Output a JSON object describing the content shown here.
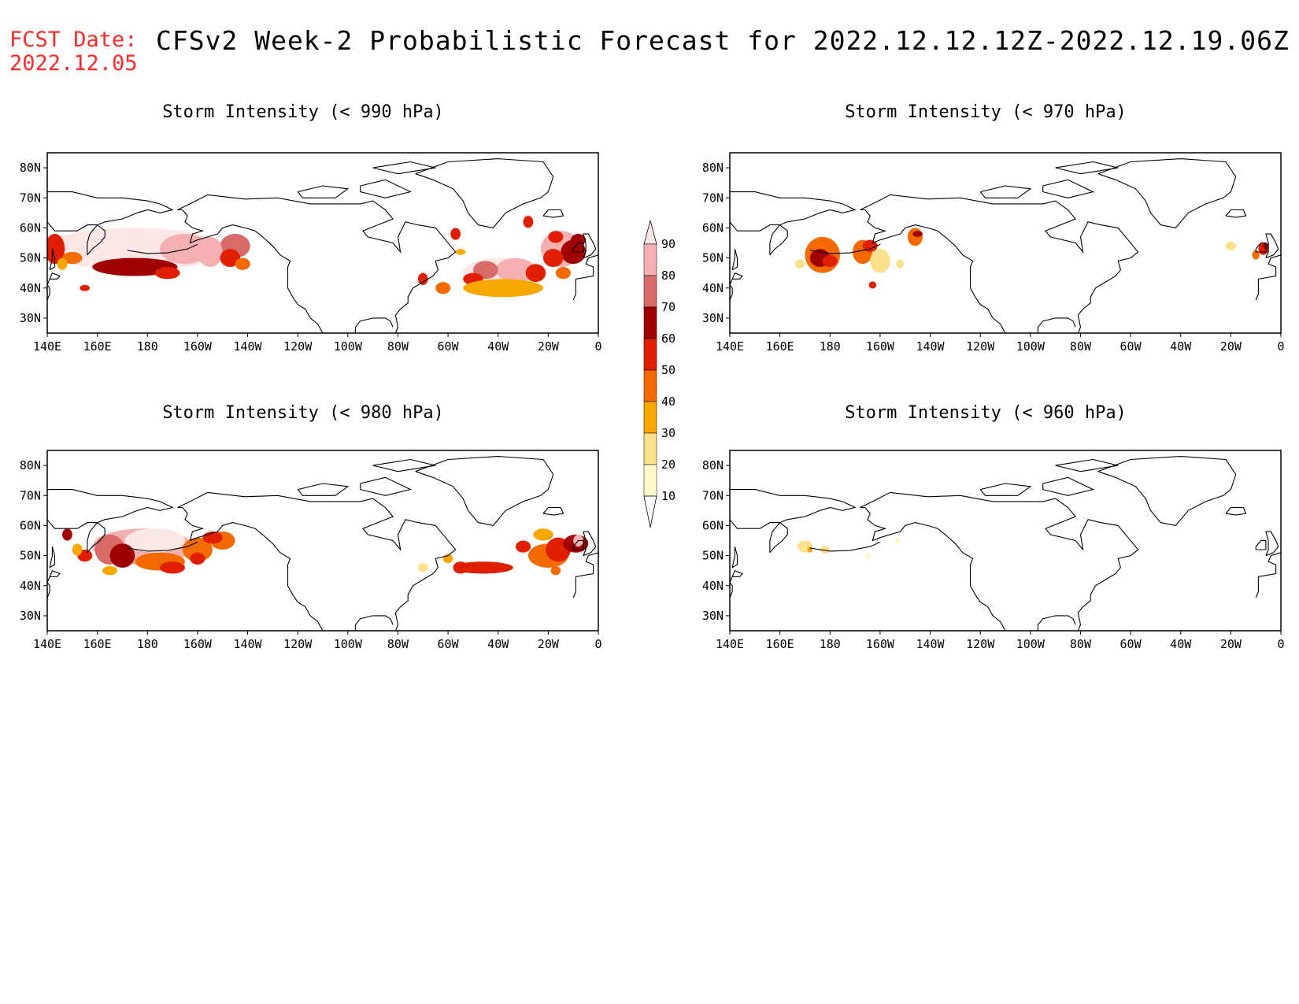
{
  "header": {
    "fcst_label": "FCST Date:",
    "fcst_date": "2022.12.05",
    "title": "CFSv2 Week-2 Probabilistic Forecast for 2022.12.12.12Z-2022.12.19.06Z"
  },
  "axes": {
    "lat_ticks": [
      "80N",
      "70N",
      "60N",
      "50N",
      "40N",
      "30N"
    ],
    "lon_ticks": [
      "140E",
      "160E",
      "180",
      "160W",
      "140W",
      "120W",
      "100W",
      "80W",
      "60W",
      "40W",
      "20W",
      "0"
    ]
  },
  "panels": [
    {
      "title": "Storm Intensity (< 990 hPa)"
    },
    {
      "title": "Storm Intensity (< 970 hPa)"
    },
    {
      "title": "Storm Intensity (< 980 hPa)"
    },
    {
      "title": "Storm Intensity (< 960 hPa)"
    }
  ],
  "colorbar": {
    "levels": [
      "90",
      "80",
      "70",
      "60",
      "50",
      "40",
      "30",
      "20",
      "10"
    ],
    "colors": [
      "#fde6e6",
      "#f4b0b0",
      "#d96a6a",
      "#a00000",
      "#e01e00",
      "#f26a00",
      "#f7a800",
      "#fce08c",
      "#fff8c8",
      "#ffffff"
    ]
  }
}
